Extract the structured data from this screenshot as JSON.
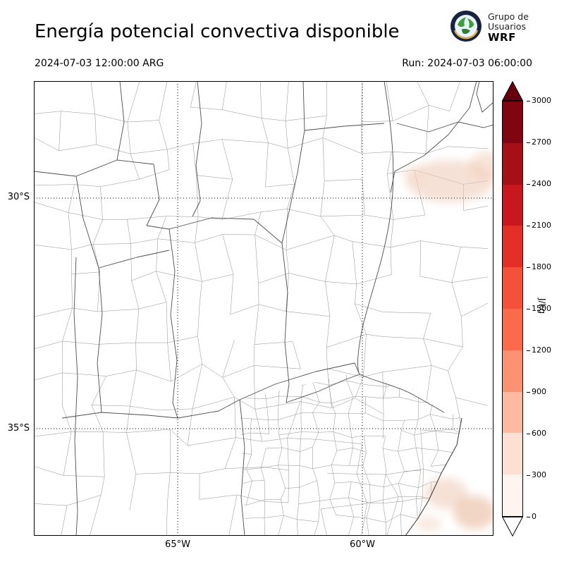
{
  "header": {
    "title": "Energía potencial convectiva disponible",
    "logo": {
      "line1": "Grupo de",
      "line2": "Usuarios",
      "line3": "WRF"
    }
  },
  "times": {
    "valid": "2024-07-03 12:00:00 ARG",
    "run": "Run: 2024-07-03 06:00:00"
  },
  "map": {
    "lat_labels": [
      {
        "label": "30°S"
      },
      {
        "label": "35°S"
      }
    ],
    "lon_labels": [
      {
        "label": "65°W"
      },
      {
        "label": "60°W"
      }
    ]
  },
  "chart_data": {
    "type": "heatmap",
    "title": "Energía potencial convectiva disponible",
    "valid_time": "2024-07-03 12:00:00 ARG",
    "run_time": "2024-07-03 06:00:00",
    "units": "J/kg",
    "lat_gridlines": [
      "30°S",
      "35°S"
    ],
    "lon_gridlines": [
      "65°W",
      "60°W"
    ],
    "colorbar": {
      "ticks": [
        0,
        300,
        600,
        900,
        1200,
        1500,
        1800,
        2100,
        2400,
        2700,
        3000
      ],
      "segment_colors_bottom_to_top": [
        "#fff5f0",
        "#fee0d2",
        "#fcbba1",
        "#fc9272",
        "#fb6a4a",
        "#f4503a",
        "#e32f27",
        "#c9181d",
        "#a50f15",
        "#7f0510"
      ],
      "over_color": "#67000d",
      "under_color": "#ffffff"
    },
    "field_summary": {
      "background_value_jkg": 0,
      "shaded_areas": [
        {
          "location": "northeast corner of domain near 30°S",
          "approx_value_jkg": "0-600"
        },
        {
          "location": "southeast coastal corner near 36°S",
          "approx_value_jkg": "0-600"
        }
      ]
    }
  }
}
